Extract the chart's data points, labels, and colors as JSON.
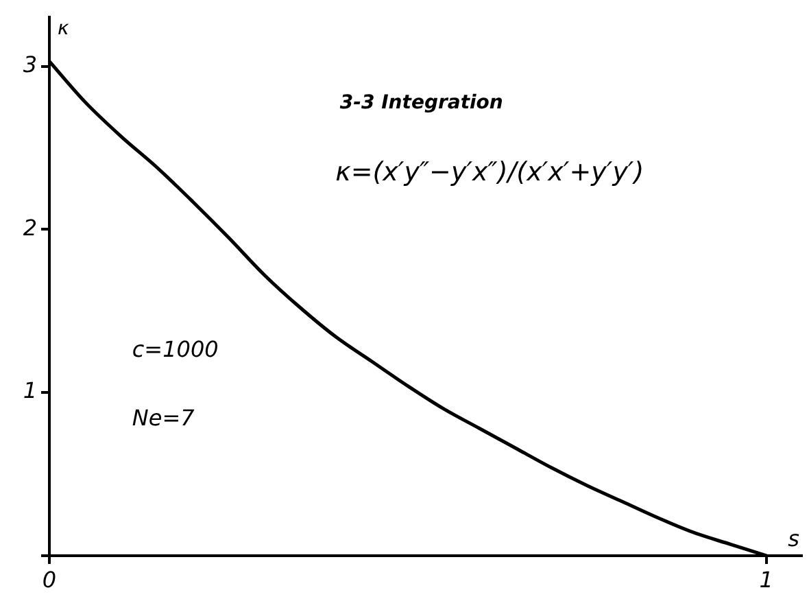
{
  "chart_data": {
    "type": "line",
    "title": "3-3 Integration",
    "subtitle": "κ=(x′y″−y′x″)/(x′x′+y′y′)",
    "xlabel": "s",
    "ylabel": "κ",
    "annotations": [
      "c=1000",
      "Ne=7"
    ],
    "x": [
      0,
      0.05,
      0.1,
      0.15,
      0.2,
      0.25,
      0.3,
      0.35,
      0.4,
      0.45,
      0.5,
      0.55,
      0.6,
      0.65,
      0.7,
      0.75,
      0.8,
      0.85,
      0.9,
      0.95,
      1
    ],
    "series": [
      {
        "color": "#000000",
        "values": [
          3.03,
          2.78,
          2.57,
          2.38,
          2.17,
          1.95,
          1.72,
          1.52,
          1.34,
          1.19,
          1.04,
          0.9,
          0.78,
          0.66,
          0.54,
          0.43,
          0.33,
          0.23,
          0.14,
          0.07,
          0
        ]
      }
    ],
    "xlim": [
      0,
      1.05
    ],
    "ylim": [
      0,
      3.3
    ],
    "xticks": [
      0,
      1
    ],
    "yticks": [
      {
        "value": 0,
        "label": null
      },
      1,
      2,
      3
    ]
  }
}
